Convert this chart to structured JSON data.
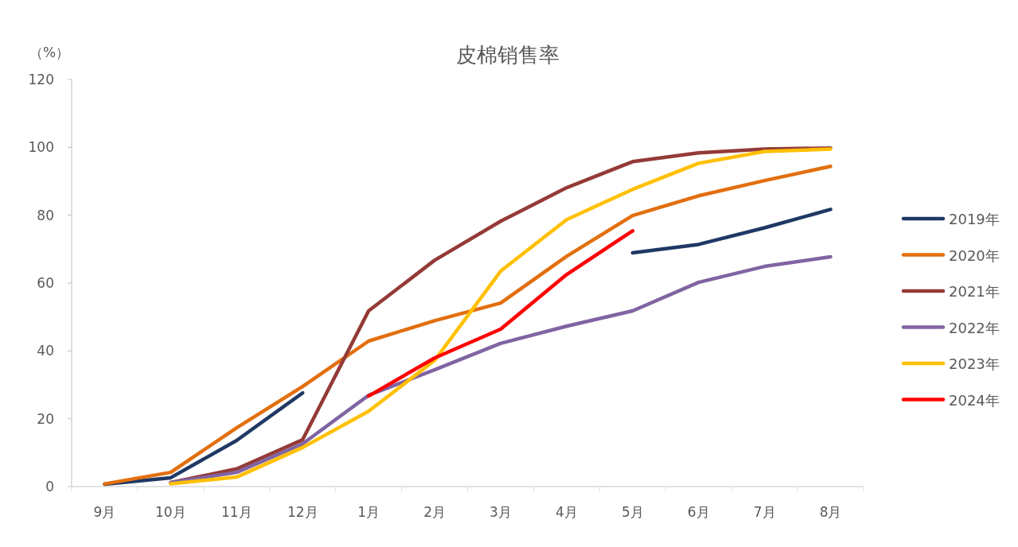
{
  "chart_data": {
    "type": "line",
    "title": "皮棉销售率",
    "ylabel": "（%）",
    "categories": [
      "9月",
      "10月",
      "11月",
      "12月",
      "1月",
      "2月",
      "3月",
      "4月",
      "5月",
      "6月",
      "7月",
      "8月"
    ],
    "ylim": [
      0,
      120
    ],
    "yticks": [
      0,
      20,
      40,
      60,
      80,
      100,
      120
    ],
    "grid": false,
    "legend": "right",
    "marker": "none",
    "line_style": "solid",
    "series": [
      {
        "name": "2019年",
        "color": "#1f3864",
        "values": [
          0.7,
          2.6,
          13.6,
          27.6,
          null,
          null,
          null,
          null,
          68.9,
          71.4,
          76.3,
          81.7
        ]
      },
      {
        "name": "2020年",
        "color": "#e26f0e",
        "values": [
          0.8,
          4.2,
          17.3,
          29.5,
          42.9,
          48.9,
          54.1,
          67.9,
          79.9,
          85.7,
          90.2,
          94.4
        ]
      },
      {
        "name": "2021年",
        "color": "#943a36",
        "values": [
          null,
          1.2,
          5.2,
          13.8,
          51.8,
          66.7,
          78.2,
          88.1,
          95.8,
          98.4,
          99.5,
          99.8
        ]
      },
      {
        "name": "2022年",
        "color": "#8064a2",
        "values": [
          null,
          1.2,
          4.2,
          12.6,
          26.9,
          34.4,
          42.2,
          47.3,
          51.8,
          60.2,
          64.9,
          67.7
        ]
      },
      {
        "name": "2023年",
        "color": "#ffc000",
        "values": [
          null,
          0.8,
          2.8,
          11.5,
          22.2,
          37.2,
          63.5,
          78.7,
          87.6,
          95.3,
          98.8,
          99.5
        ]
      },
      {
        "name": "2024年",
        "color": "#ff0000",
        "values": [
          null,
          null,
          null,
          null,
          26.7,
          37.9,
          46.4,
          62.5,
          75.4,
          null,
          null,
          null
        ]
      }
    ]
  }
}
